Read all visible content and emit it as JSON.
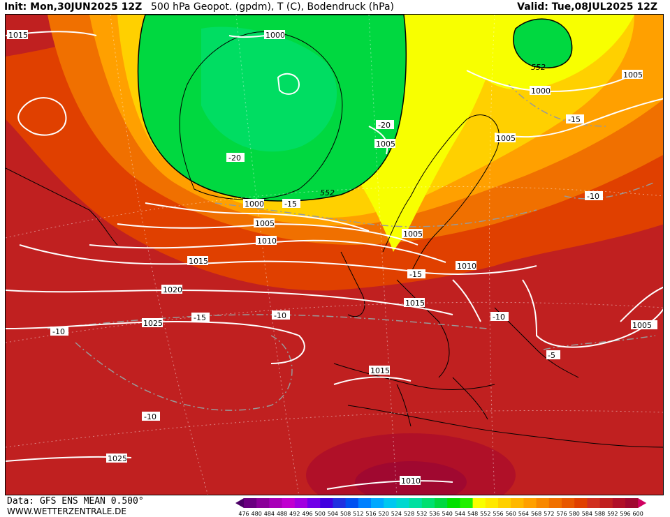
{
  "header": {
    "init": "Init: Mon,30JUN2025 12Z",
    "title": "500 hPa Geopot. (gpdm), T (C), Bodendruck (hPa)",
    "valid": "Valid: Tue,08JUL2025 12Z"
  },
  "footer": {
    "data": "Data: GFS ENS MEAN 0.500°",
    "site": "WWW.WETTERZENTRALE.DE"
  },
  "colorbar": {
    "ticks": [
      "476",
      "480",
      "484",
      "488",
      "492",
      "496",
      "500",
      "504",
      "508",
      "512",
      "516",
      "520",
      "524",
      "528",
      "532",
      "536",
      "540",
      "544",
      "548",
      "552",
      "556",
      "560",
      "564",
      "568",
      "572",
      "576",
      "580",
      "584",
      "588",
      "592",
      "596",
      "600"
    ],
    "colors": [
      "#4b0066",
      "#6a0080",
      "#8a0099",
      "#a800b8",
      "#c000d0",
      "#a000e0",
      "#7000e8",
      "#4000e0",
      "#2030e0",
      "#0050f0",
      "#0080ff",
      "#00a8ff",
      "#00c8f0",
      "#00d8d0",
      "#00e0a0",
      "#00e070",
      "#00d840",
      "#00e000",
      "#20f000",
      "#f8ff00",
      "#ffe800",
      "#ffd000",
      "#ffb800",
      "#ffa000",
      "#f88800",
      "#f07000",
      "#e85800",
      "#e04000",
      "#d03020",
      "#c02020",
      "#b01028",
      "#a00830",
      "#d00060"
    ]
  },
  "map": {
    "isobar_labels": [
      {
        "text": "1015"
      },
      {
        "text": "1000"
      },
      {
        "text": "1000"
      },
      {
        "text": "1005"
      },
      {
        "text": "1005"
      },
      {
        "text": "1005"
      },
      {
        "text": "1000"
      },
      {
        "text": "1005"
      },
      {
        "text": "1005"
      },
      {
        "text": "1010"
      },
      {
        "text": "1015"
      },
      {
        "text": "1020"
      },
      {
        "text": "1025"
      },
      {
        "text": "1010"
      },
      {
        "text": "1015"
      },
      {
        "text": "1005"
      },
      {
        "text": "1015"
      },
      {
        "text": "1025"
      },
      {
        "text": "1010"
      }
    ],
    "temp_labels": [
      {
        "text": "-20"
      },
      {
        "text": "-20"
      },
      {
        "text": "-15"
      },
      {
        "text": "-15"
      },
      {
        "text": "-10"
      },
      {
        "text": "-15"
      },
      {
        "text": "-10"
      },
      {
        "text": "-15"
      },
      {
        "text": "-10"
      },
      {
        "text": "-10"
      },
      {
        "text": "-5"
      },
      {
        "text": "-10"
      }
    ],
    "geopot_labels": [
      {
        "text": "552"
      },
      {
        "text": "552"
      }
    ]
  }
}
